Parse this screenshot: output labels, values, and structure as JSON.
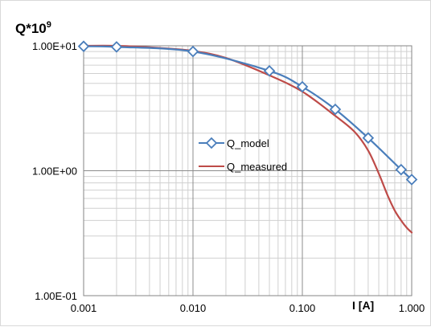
{
  "chart_data": {
    "type": "line",
    "ylabel_base": "Q*10",
    "ylabel_exponent": "9",
    "xlabel": "I [A]",
    "x_scale": "log",
    "y_scale": "log",
    "xlim": [
      0.001,
      1.0
    ],
    "ylim": [
      0.1,
      10
    ],
    "grid": true,
    "x_ticks": [
      0.001,
      0.01,
      0.1,
      1.0
    ],
    "x_tick_labels": [
      "0.001",
      "0.010",
      "0.100",
      "1.000"
    ],
    "y_ticks": [
      10,
      1,
      0.1
    ],
    "y_tick_labels": [
      "1.00E+01",
      "1.00E+00",
      "1.00E-01"
    ],
    "legend_position": "center",
    "series": [
      {
        "name": "Q_model",
        "color": "#4a7ebb",
        "marker": "diamond",
        "x": [
          0.001,
          0.002,
          0.01,
          0.05,
          0.1,
          0.2,
          0.4,
          0.8,
          1.0
        ],
        "y": [
          9.9,
          9.8,
          9.0,
          6.3,
          4.7,
          3.1,
          1.83,
          1.02,
          0.85
        ]
      },
      {
        "name": "Q_measured",
        "color": "#be4b48",
        "marker": "none",
        "x": [
          0.001,
          0.002,
          0.005,
          0.01,
          0.02,
          0.05,
          0.1,
          0.2,
          0.3,
          0.4,
          0.5,
          0.6,
          0.7,
          0.8,
          0.9,
          1.0
        ],
        "y": [
          10.0,
          10.0,
          9.6,
          9.1,
          8.0,
          5.8,
          4.3,
          2.75,
          2.05,
          1.45,
          0.95,
          0.64,
          0.48,
          0.4,
          0.35,
          0.32
        ]
      }
    ]
  }
}
